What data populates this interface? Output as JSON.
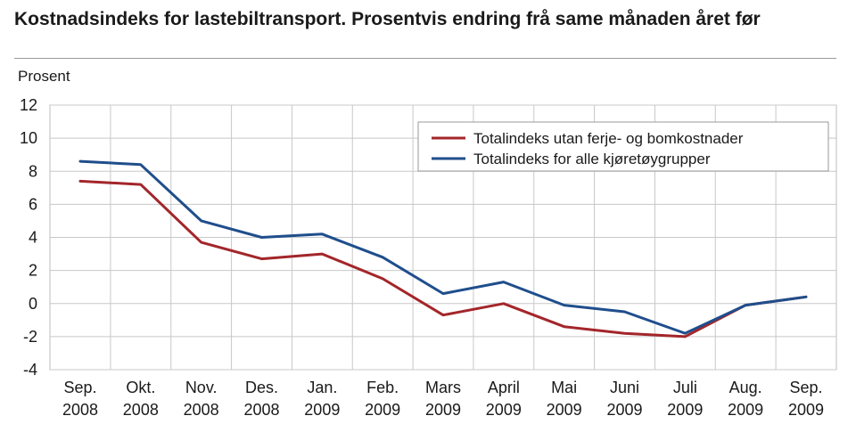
{
  "title": "Kostnadsindeks for lastebiltransport. Prosentvis endring frå same månaden året før",
  "chart_data": {
    "type": "line",
    "title": "Kostnadsindeks for lastebiltransport. Prosentvis endring frå same månaden året før",
    "ylabel": "Prosent",
    "xlabel": "",
    "ylim": [
      -4,
      12
    ],
    "yticks": [
      -4,
      -2,
      0,
      2,
      4,
      6,
      8,
      10,
      12
    ],
    "grid": true,
    "legend_position": "top-right",
    "categories": [
      [
        "Sep.",
        "2008"
      ],
      [
        "Okt.",
        "2008"
      ],
      [
        "Nov.",
        "2008"
      ],
      [
        "Des.",
        "2008"
      ],
      [
        "Jan.",
        "2009"
      ],
      [
        "Feb.",
        "2009"
      ],
      [
        "Mars",
        "2009"
      ],
      [
        "April",
        "2009"
      ],
      [
        "Mai",
        "2009"
      ],
      [
        "Juni",
        "2009"
      ],
      [
        "Juli",
        "2009"
      ],
      [
        "Aug.",
        "2009"
      ],
      [
        "Sep.",
        "2009"
      ]
    ],
    "series": [
      {
        "name": "Totalindeks utan ferje- og bomkostnader",
        "color": "#a3262a",
        "values": [
          7.4,
          7.2,
          3.7,
          2.7,
          3.0,
          1.5,
          -0.7,
          0.0,
          -1.4,
          -1.8,
          -2.0,
          -0.1,
          0.4
        ]
      },
      {
        "name": "Totalindeks for alle kjøretøygrupper",
        "color": "#1f4e8c",
        "values": [
          8.6,
          8.4,
          5.0,
          4.0,
          4.2,
          2.8,
          0.6,
          1.3,
          -0.1,
          -0.5,
          -1.8,
          -0.1,
          0.4
        ]
      }
    ]
  }
}
